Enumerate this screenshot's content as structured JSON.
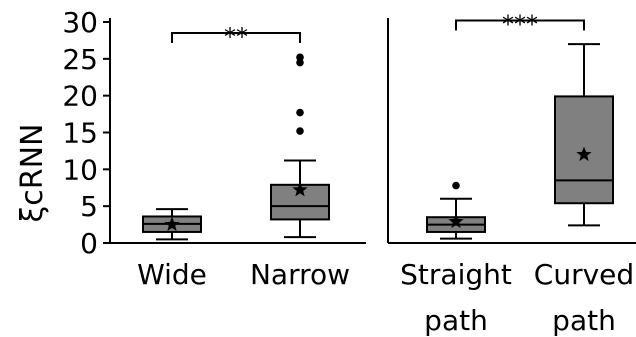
{
  "chart_data": [
    {
      "type": "box",
      "ylabel": "ξcRNN",
      "ylim": [
        0,
        30
      ],
      "yticks": [
        0,
        5,
        10,
        15,
        20,
        25,
        30
      ],
      "categories": [
        "Wide",
        "Narrow"
      ],
      "boxes": [
        {
          "category": "Wide",
          "whisker_low": 0.5,
          "q1": 1.5,
          "median": 2.6,
          "q3": 3.6,
          "whisker_high": 4.6,
          "mean": 2.5,
          "outliers": []
        },
        {
          "category": "Narrow",
          "whisker_low": 0.8,
          "q1": 3.2,
          "median": 5.0,
          "q3": 7.9,
          "whisker_high": 11.2,
          "mean": 7.2,
          "outliers": [
            15.2,
            17.7,
            24.5,
            25.2
          ]
        }
      ],
      "significance": {
        "label": "**",
        "between": [
          "Wide",
          "Narrow"
        ],
        "level": 28.5
      },
      "box_color": "#808080",
      "grid": false
    },
    {
      "type": "box",
      "ylim": [
        0,
        30
      ],
      "categories": [
        "Straight path",
        "Curved path"
      ],
      "category_lines": [
        [
          "Straight",
          "path"
        ],
        [
          "Curved",
          "path"
        ]
      ],
      "boxes": [
        {
          "category": "Straight path",
          "whisker_low": 0.6,
          "q1": 1.5,
          "median": 2.5,
          "q3": 3.5,
          "whisker_high": 6.0,
          "mean": 2.9,
          "outliers": [
            7.8
          ]
        },
        {
          "category": "Curved path",
          "whisker_low": 2.4,
          "q1": 5.4,
          "median": 8.5,
          "q3": 19.9,
          "whisker_high": 27.0,
          "mean": 12.0,
          "outliers": []
        }
      ],
      "significance": {
        "label": "***",
        "between": [
          "Straight path",
          "Curved path"
        ],
        "level": 30.2
      },
      "box_color": "#808080",
      "grid": false
    }
  ]
}
